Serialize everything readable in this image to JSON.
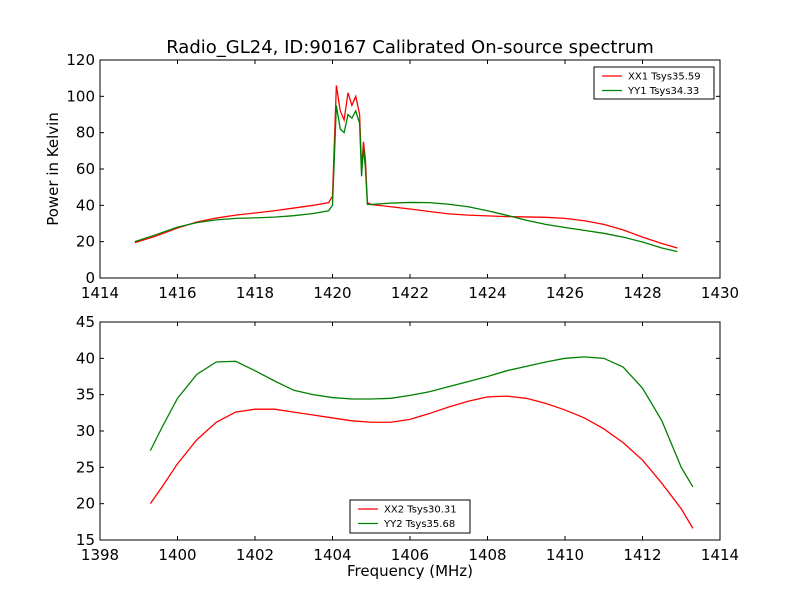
{
  "chart_data": {
    "title": "Radio_GL24, ID:90167 Calibrated On-source spectrum",
    "xlabel": "Frequency (MHz)",
    "ylabel": "Power in Kelvin",
    "panels": [
      {
        "type": "line",
        "xlim": [
          1414,
          1430
        ],
        "ylim": [
          0,
          120
        ],
        "xticks": [
          "1414",
          "1416",
          "1418",
          "1420",
          "1422",
          "1424",
          "1426",
          "1428",
          "1430"
        ],
        "yticks": [
          "0",
          "20",
          "40",
          "60",
          "80",
          "100",
          "120"
        ],
        "legend_position": "top-right",
        "series": [
          {
            "name": "XX1 Tsys35.59",
            "color": "#ff0000",
            "points": [
              [
                1414.9,
                19.5
              ],
              [
                1415.4,
                22.8
              ],
              [
                1416.0,
                27.5
              ],
              [
                1416.5,
                30.8
              ],
              [
                1417.0,
                33.0
              ],
              [
                1417.5,
                34.6
              ],
              [
                1418.0,
                35.8
              ],
              [
                1418.5,
                37.0
              ],
              [
                1419.0,
                38.5
              ],
              [
                1419.5,
                40.0
              ],
              [
                1419.9,
                41.5
              ],
              [
                1420.0,
                45.0
              ],
              [
                1420.1,
                106.0
              ],
              [
                1420.2,
                92.0
              ],
              [
                1420.3,
                87.0
              ],
              [
                1420.4,
                102.0
              ],
              [
                1420.5,
                95.0
              ],
              [
                1420.6,
                100.0
              ],
              [
                1420.7,
                90.0
              ],
              [
                1420.75,
                60.0
              ],
              [
                1420.8,
                75.0
              ],
              [
                1420.85,
                65.0
              ],
              [
                1420.9,
                41.5
              ],
              [
                1421.0,
                40.5
              ],
              [
                1421.5,
                39.2
              ],
              [
                1422.0,
                38.0
              ],
              [
                1422.5,
                36.6
              ],
              [
                1423.0,
                35.3
              ],
              [
                1423.5,
                34.6
              ],
              [
                1424.0,
                34.2
              ],
              [
                1424.5,
                33.8
              ],
              [
                1425.0,
                33.6
              ],
              [
                1425.5,
                33.4
              ],
              [
                1426.0,
                32.8
              ],
              [
                1426.5,
                31.5
              ],
              [
                1427.0,
                29.5
              ],
              [
                1427.5,
                26.5
              ],
              [
                1428.0,
                22.5
              ],
              [
                1428.5,
                19.0
              ],
              [
                1428.9,
                16.5
              ]
            ]
          },
          {
            "name": "YY1 Tsys34.33",
            "color": "#008000",
            "points": [
              [
                1414.9,
                20.0
              ],
              [
                1415.4,
                23.5
              ],
              [
                1416.0,
                28.0
              ],
              [
                1416.5,
                30.5
              ],
              [
                1417.0,
                32.0
              ],
              [
                1417.5,
                32.8
              ],
              [
                1418.0,
                33.1
              ],
              [
                1418.5,
                33.5
              ],
              [
                1419.0,
                34.3
              ],
              [
                1419.5,
                35.5
              ],
              [
                1419.9,
                37.0
              ],
              [
                1420.0,
                40.0
              ],
              [
                1420.1,
                95.0
              ],
              [
                1420.2,
                82.0
              ],
              [
                1420.3,
                80.0
              ],
              [
                1420.4,
                90.0
              ],
              [
                1420.5,
                88.0
              ],
              [
                1420.6,
                92.0
              ],
              [
                1420.7,
                85.0
              ],
              [
                1420.75,
                56.0
              ],
              [
                1420.8,
                72.0
              ],
              [
                1420.85,
                60.0
              ],
              [
                1420.9,
                40.5
              ],
              [
                1421.0,
                40.5
              ],
              [
                1421.5,
                41.2
              ],
              [
                1422.0,
                41.6
              ],
              [
                1422.5,
                41.5
              ],
              [
                1423.0,
                40.6
              ],
              [
                1423.5,
                39.2
              ],
              [
                1424.0,
                37.0
              ],
              [
                1424.5,
                34.5
              ],
              [
                1425.0,
                31.8
              ],
              [
                1425.5,
                29.5
              ],
              [
                1426.0,
                27.8
              ],
              [
                1426.5,
                26.2
              ],
              [
                1427.0,
                24.6
              ],
              [
                1427.5,
                22.5
              ],
              [
                1428.0,
                19.8
              ],
              [
                1428.5,
                16.5
              ],
              [
                1428.9,
                14.5
              ]
            ]
          }
        ]
      },
      {
        "type": "line",
        "xlim": [
          1398,
          1414
        ],
        "ylim": [
          15,
          45
        ],
        "xticks": [
          "1398",
          "1400",
          "1402",
          "1404",
          "1406",
          "1408",
          "1410",
          "1412",
          "1414"
        ],
        "yticks": [
          "15",
          "20",
          "25",
          "30",
          "35",
          "40",
          "45"
        ],
        "legend_position": "lower-center",
        "series": [
          {
            "name": "XX2 Tsys30.31",
            "color": "#ff0000",
            "points": [
              [
                1399.3,
                20.0
              ],
              [
                1399.6,
                22.3
              ],
              [
                1400.0,
                25.5
              ],
              [
                1400.5,
                28.8
              ],
              [
                1401.0,
                31.2
              ],
              [
                1401.5,
                32.6
              ],
              [
                1402.0,
                33.0
              ],
              [
                1402.5,
                33.0
              ],
              [
                1403.0,
                32.6
              ],
              [
                1403.5,
                32.2
              ],
              [
                1404.0,
                31.8
              ],
              [
                1404.5,
                31.4
              ],
              [
                1405.0,
                31.2
              ],
              [
                1405.5,
                31.2
              ],
              [
                1406.0,
                31.6
              ],
              [
                1406.5,
                32.4
              ],
              [
                1407.0,
                33.3
              ],
              [
                1407.5,
                34.1
              ],
              [
                1408.0,
                34.7
              ],
              [
                1408.5,
                34.8
              ],
              [
                1409.0,
                34.5
              ],
              [
                1409.5,
                33.8
              ],
              [
                1410.0,
                32.9
              ],
              [
                1410.5,
                31.8
              ],
              [
                1411.0,
                30.3
              ],
              [
                1411.5,
                28.4
              ],
              [
                1412.0,
                26.0
              ],
              [
                1412.5,
                22.8
              ],
              [
                1413.0,
                19.3
              ],
              [
                1413.3,
                16.6
              ]
            ]
          },
          {
            "name": "YY2 Tsys35.68",
            "color": "#008000",
            "points": [
              [
                1399.3,
                27.3
              ],
              [
                1399.6,
                30.5
              ],
              [
                1400.0,
                34.5
              ],
              [
                1400.5,
                37.8
              ],
              [
                1401.0,
                39.5
              ],
              [
                1401.5,
                39.6
              ],
              [
                1402.0,
                38.3
              ],
              [
                1402.5,
                36.9
              ],
              [
                1403.0,
                35.6
              ],
              [
                1403.5,
                35.0
              ],
              [
                1404.0,
                34.6
              ],
              [
                1404.5,
                34.4
              ],
              [
                1405.0,
                34.4
              ],
              [
                1405.5,
                34.5
              ],
              [
                1406.0,
                34.9
              ],
              [
                1406.5,
                35.4
              ],
              [
                1407.0,
                36.1
              ],
              [
                1407.5,
                36.8
              ],
              [
                1408.0,
                37.5
              ],
              [
                1408.5,
                38.3
              ],
              [
                1409.0,
                38.9
              ],
              [
                1409.5,
                39.5
              ],
              [
                1410.0,
                40.0
              ],
              [
                1410.5,
                40.2
              ],
              [
                1411.0,
                40.0
              ],
              [
                1411.5,
                38.8
              ],
              [
                1412.0,
                35.9
              ],
              [
                1412.5,
                31.4
              ],
              [
                1413.0,
                25.0
              ],
              [
                1413.3,
                22.3
              ]
            ]
          }
        ]
      }
    ]
  }
}
